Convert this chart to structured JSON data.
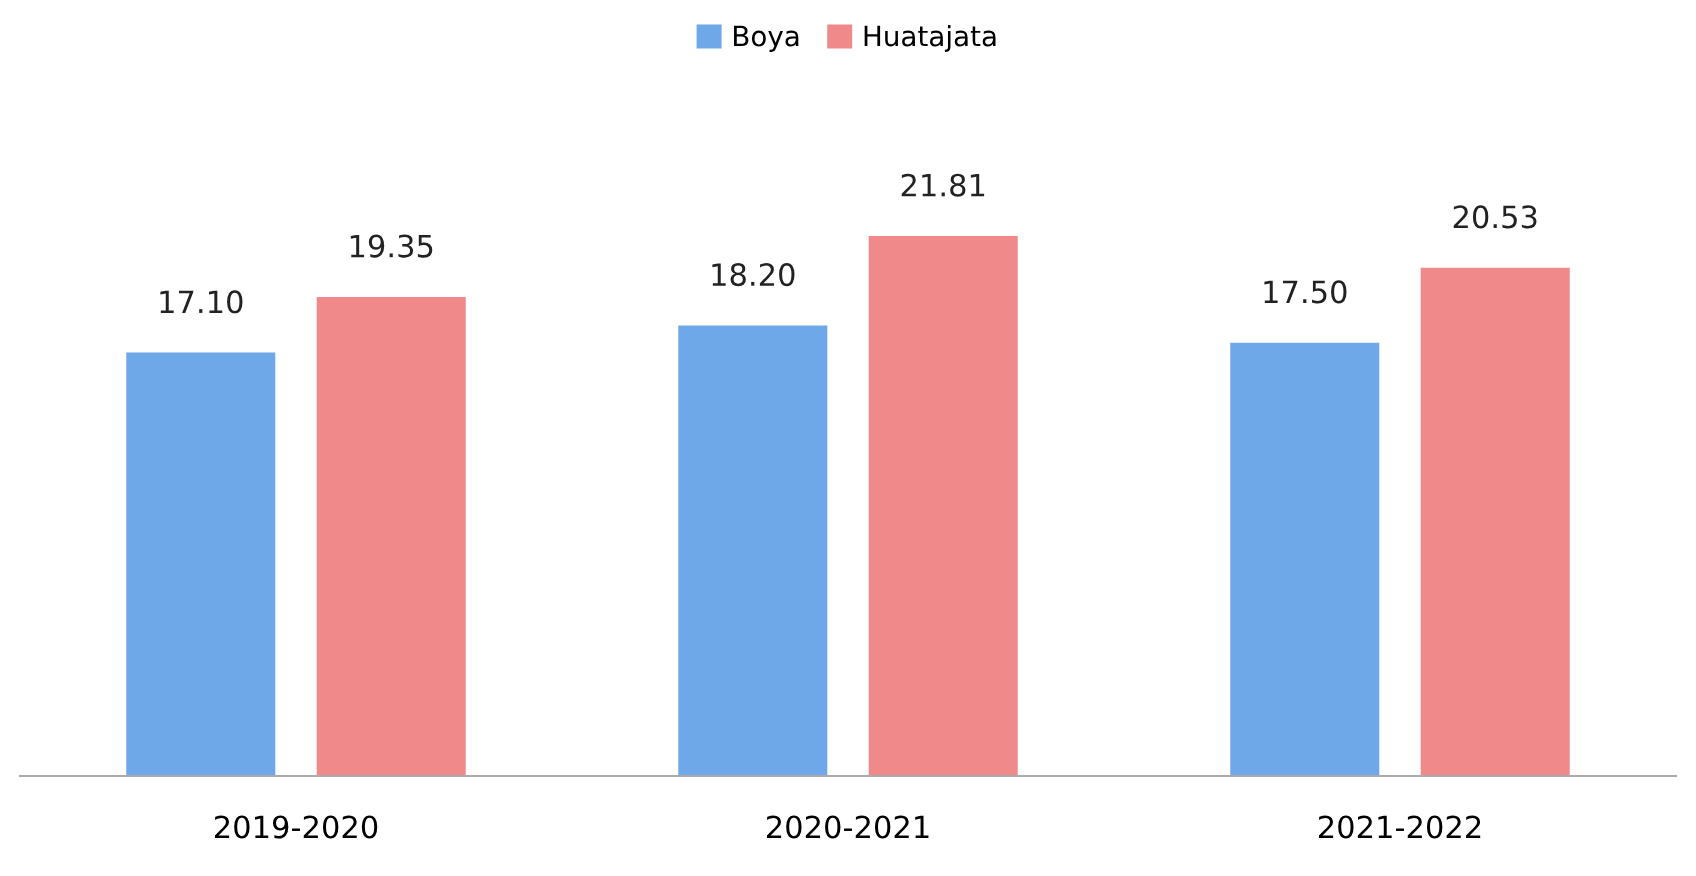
{
  "chart_data": {
    "type": "bar",
    "categories": [
      "2019-2020",
      "2020-2021",
      "2021-2022"
    ],
    "series": [
      {
        "name": "Boya",
        "color": "#6fa8e8",
        "values": [
          17.1,
          18.2,
          17.5
        ],
        "value_labels": [
          "17.10",
          "18.20",
          "17.50"
        ]
      },
      {
        "name": "Huatajata",
        "color": "#f08a8a",
        "values": [
          19.35,
          21.81,
          20.53
        ],
        "value_labels": [
          "19.35",
          "21.81",
          "20.53"
        ]
      }
    ],
    "legend": "top",
    "grid": false
  }
}
